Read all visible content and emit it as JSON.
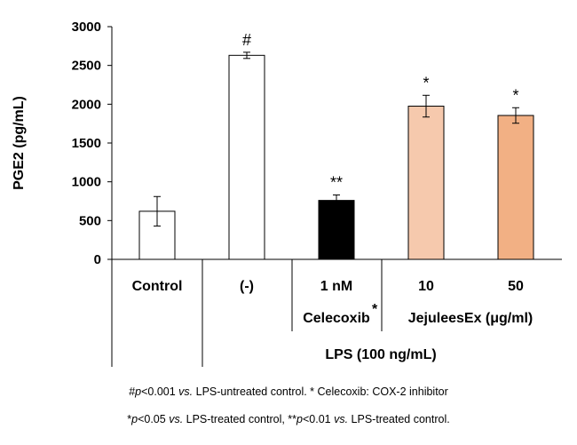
{
  "chart_data": {
    "type": "bar",
    "ylabel": "PGE2 (pg/mL)",
    "ylim": [
      0,
      3000
    ],
    "yticks": [
      0,
      500,
      1000,
      1500,
      2000,
      2500,
      3000
    ],
    "categories": [
      "Control",
      "(-)",
      "1 nM",
      "10",
      "50"
    ],
    "values": [
      620,
      2630,
      760,
      1975,
      1855
    ],
    "errors": [
      190,
      40,
      70,
      140,
      100
    ],
    "significance": [
      "",
      "#",
      "**",
      "*",
      "*"
    ],
    "colors": [
      "#ffffff",
      "#ffffff",
      "#000000",
      "#f6c9ad",
      "#f2b084"
    ],
    "group_labels": {
      "celecoxib": "Celecoxib",
      "celecoxib_mark": "*",
      "jejulees": "JejuleesEx (μg/ml)",
      "lps": "LPS (100 ng/mL)"
    }
  },
  "footnotes": {
    "line1": {
      "sym": "#",
      "p": "p",
      "val": "<0.001 ",
      "vs": "vs.",
      "rest": " LPS-untreated control. * Celecoxib: COX-2 inhibitor"
    },
    "line2": {
      "sym1": "*",
      "p1": "p",
      "val1": "<0.05 ",
      "vs1": "vs.",
      "rest1": " LPS-treated control, ",
      "sym2": "**",
      "p2": "p",
      "val2": "<0.01 ",
      "vs2": "vs.",
      "rest2": " LPS-treated control."
    }
  }
}
